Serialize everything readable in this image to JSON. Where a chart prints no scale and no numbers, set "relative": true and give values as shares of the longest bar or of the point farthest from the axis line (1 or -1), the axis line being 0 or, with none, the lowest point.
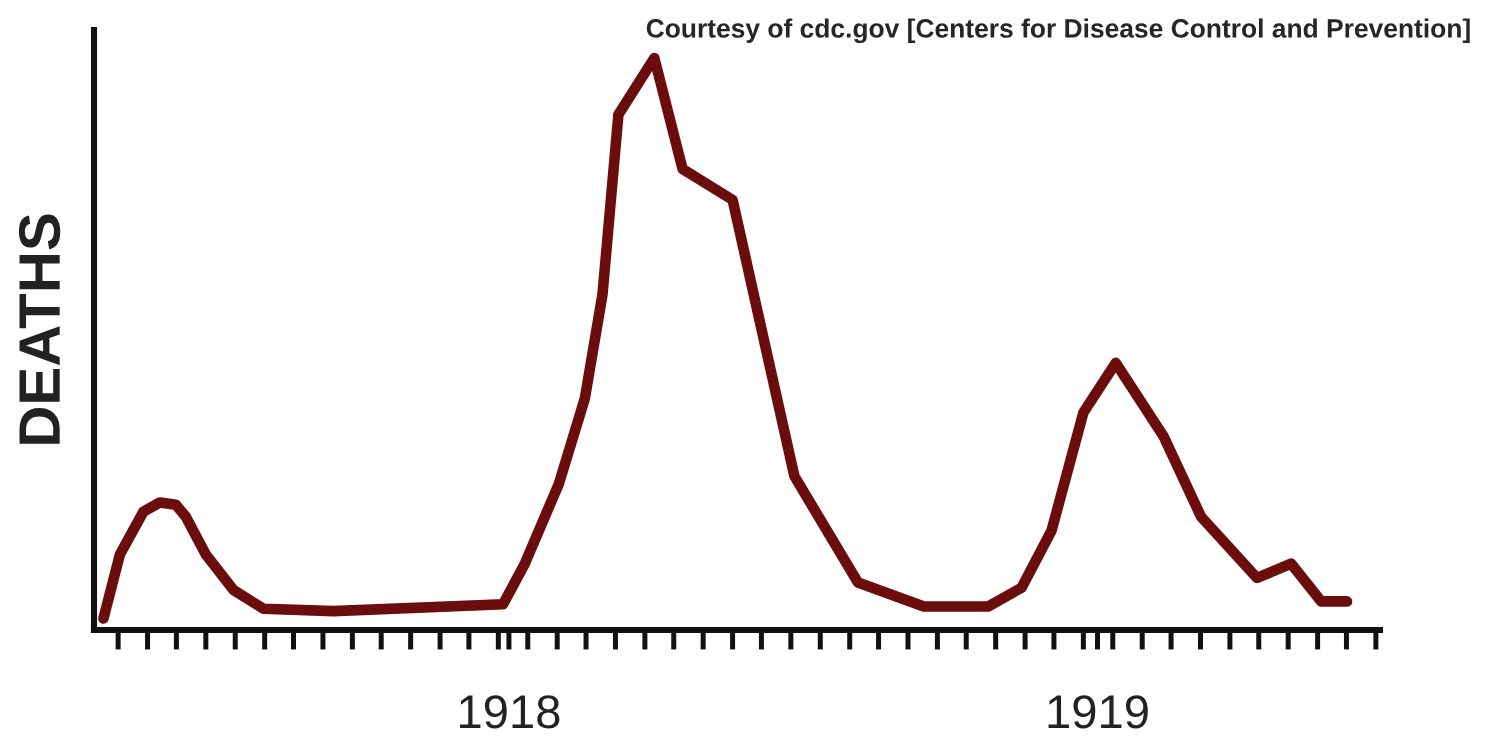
{
  "chart_data": {
    "type": "line",
    "relative": true,
    "ylabel": "DEATHS",
    "annotations": [
      "Courtesy of cdc.gov [Centers for Disease Control and Prevention]"
    ],
    "xlim": [
      1917.295,
      1919.48
    ],
    "xticks": [
      {
        "value": 1917.336,
        "label": null
      },
      {
        "value": 1917.386,
        "label": null
      },
      {
        "value": 1917.435,
        "label": null
      },
      {
        "value": 1917.485,
        "label": null
      },
      {
        "value": 1917.535,
        "label": null
      },
      {
        "value": 1917.585,
        "label": null
      },
      {
        "value": 1917.634,
        "label": null
      },
      {
        "value": 1917.684,
        "label": null
      },
      {
        "value": 1917.734,
        "label": null
      },
      {
        "value": 1917.783,
        "label": null
      },
      {
        "value": 1917.833,
        "label": null
      },
      {
        "value": 1917.883,
        "label": null
      },
      {
        "value": 1917.932,
        "label": null
      },
      {
        "value": 1917.982,
        "label": null
      },
      {
        "value": 1918,
        "label": "1918"
      },
      {
        "value": 1918.032,
        "label": null
      },
      {
        "value": 1918.082,
        "label": null
      },
      {
        "value": 1918.131,
        "label": null
      },
      {
        "value": 1918.181,
        "label": null
      },
      {
        "value": 1918.231,
        "label": null
      },
      {
        "value": 1918.28,
        "label": null
      },
      {
        "value": 1918.33,
        "label": null
      },
      {
        "value": 1918.38,
        "label": null
      },
      {
        "value": 1918.429,
        "label": null
      },
      {
        "value": 1918.479,
        "label": null
      },
      {
        "value": 1918.529,
        "label": null
      },
      {
        "value": 1918.579,
        "label": null
      },
      {
        "value": 1918.628,
        "label": null
      },
      {
        "value": 1918.678,
        "label": null
      },
      {
        "value": 1918.728,
        "label": null
      },
      {
        "value": 1918.777,
        "label": null
      },
      {
        "value": 1918.827,
        "label": null
      },
      {
        "value": 1918.877,
        "label": null
      },
      {
        "value": 1918.926,
        "label": null
      },
      {
        "value": 1918.976,
        "label": null
      },
      {
        "value": 1919,
        "label": "1919"
      },
      {
        "value": 1919.026,
        "label": null
      },
      {
        "value": 1919.076,
        "label": null
      },
      {
        "value": 1919.125,
        "label": null
      },
      {
        "value": 1919.175,
        "label": null
      },
      {
        "value": 1919.225,
        "label": null
      },
      {
        "value": 1919.274,
        "label": null
      },
      {
        "value": 1919.324,
        "label": null
      },
      {
        "value": 1919.374,
        "label": null
      },
      {
        "value": 1919.423,
        "label": null
      },
      {
        "value": 1919.473,
        "label": null
      }
    ],
    "grid": false,
    "legend": false,
    "marker": "none",
    "line_style": "solid",
    "series": [
      {
        "color": "#6b0d0d",
        "x": [
          1917.311,
          1917.339,
          1917.379,
          1917.407,
          1917.434,
          1917.451,
          1917.485,
          1917.532,
          1917.583,
          1917.702,
          1917.99,
          1918.027,
          1918.085,
          1918.129,
          1918.159,
          1918.186,
          1918.247,
          1918.295,
          1918.38,
          1918.485,
          1918.593,
          1918.705,
          1918.814,
          1918.871,
          1918.922,
          1918.976,
          1919.031,
          1919.112,
          1919.176,
          1919.271,
          1919.329,
          1919.38,
          1919.424
        ],
        "values": [
          0.02,
          0.132,
          0.207,
          0.223,
          0.219,
          0.198,
          0.132,
          0.07,
          0.037,
          0.033,
          0.045,
          0.116,
          0.256,
          0.405,
          0.587,
          0.901,
          1.0,
          0.806,
          0.752,
          0.269,
          0.083,
          0.041,
          0.041,
          0.074,
          0.174,
          0.38,
          0.467,
          0.339,
          0.198,
          0.091,
          0.116,
          0.05,
          0.05
        ]
      }
    ]
  }
}
